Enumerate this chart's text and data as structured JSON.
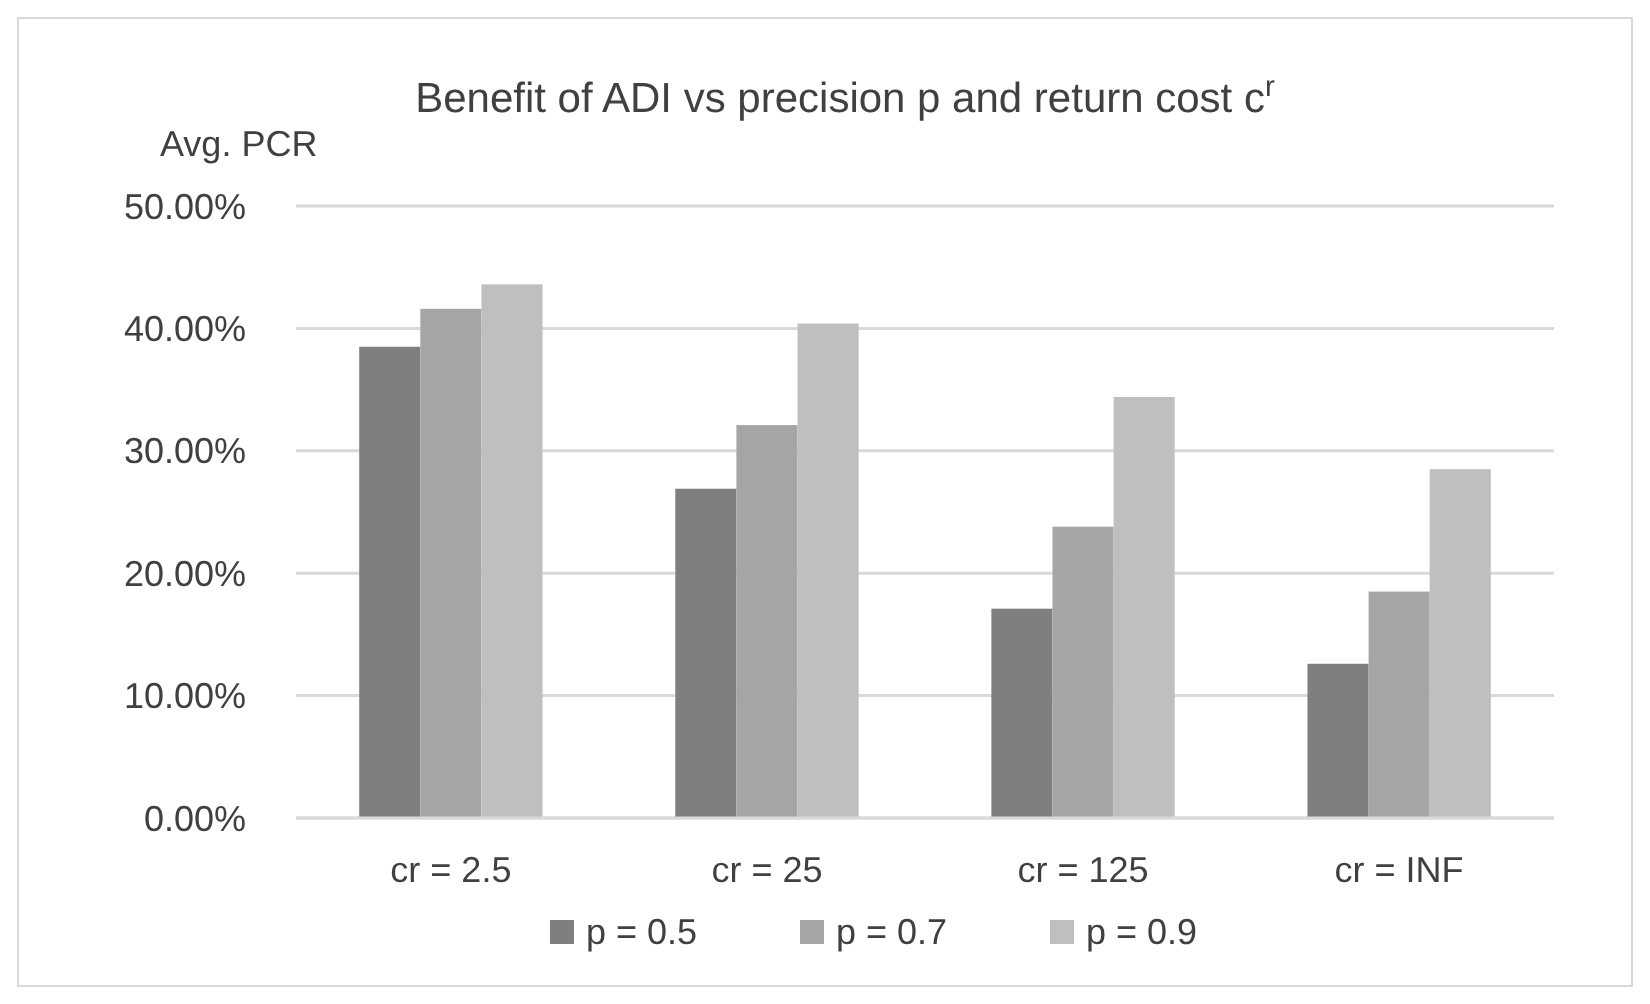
{
  "chart_data": {
    "type": "bar",
    "title": "Benefit of ADI vs precision p and return cost c$^{r}$",
    "ylabel": "Avg. PCR",
    "categories": [
      "cr = 2.5",
      "cr = 25",
      "cr = 125",
      "cr = INF"
    ],
    "series": [
      {
        "name": "p = 0.5",
        "color": "#7f7f7f",
        "values": [
          38.5,
          26.9,
          17.1,
          12.6
        ]
      },
      {
        "name": "p = 0.7",
        "color": "#a5a5a5",
        "values": [
          41.6,
          32.1,
          23.8,
          18.5
        ]
      },
      {
        "name": "p = 0.9",
        "color": "#bfbfbf",
        "values": [
          43.6,
          40.4,
          34.4,
          28.5
        ]
      }
    ],
    "ylim": [
      0,
      50
    ],
    "yticks": [
      {
        "value": 0,
        "label": "0.00%"
      },
      {
        "value": 10,
        "label": "10.00%"
      },
      {
        "value": 20,
        "label": "20.00%"
      },
      {
        "value": 30,
        "label": "30.00%"
      },
      {
        "value": 40,
        "label": "40.00%"
      },
      {
        "value": 50,
        "label": "50.00%"
      }
    ],
    "grid": "y",
    "legend": "bottom"
  }
}
